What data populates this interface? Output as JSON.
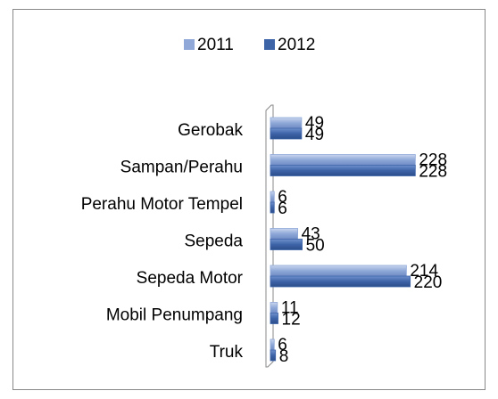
{
  "chart_data": {
    "type": "bar",
    "orientation": "horizontal",
    "categories": [
      "Gerobak",
      "Sampan/Perahu",
      "Perahu Motor Tempel",
      "Sepeda",
      "Sepeda Motor",
      "Mobil Penumpang",
      "Truk"
    ],
    "series": [
      {
        "name": "2011",
        "color": "#8fa8d8",
        "values": [
          49,
          228,
          6,
          43,
          214,
          11,
          6
        ]
      },
      {
        "name": "2012",
        "color": "#3e64a8",
        "values": [
          49,
          228,
          6,
          50,
          220,
          12,
          8
        ]
      }
    ],
    "xlim": [
      0,
      250
    ],
    "legend": "top"
  }
}
